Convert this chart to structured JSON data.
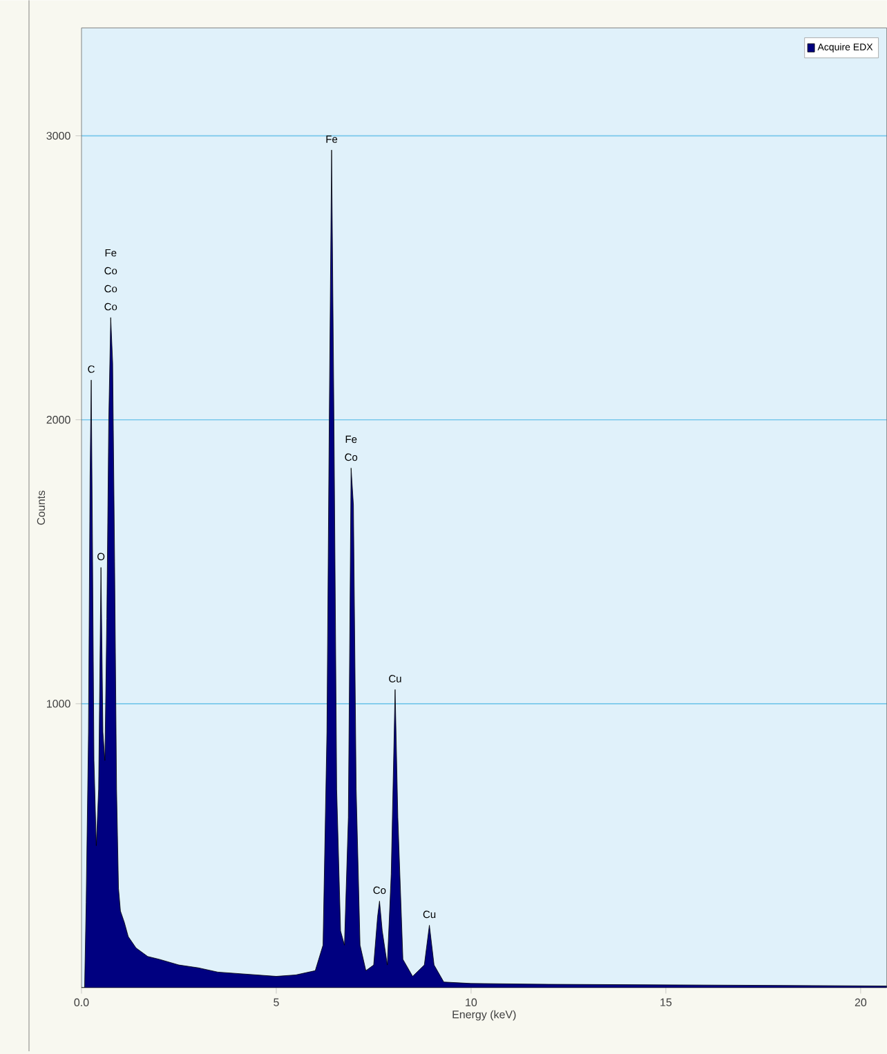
{
  "chart_data": {
    "type": "area",
    "xlabel": "Energy (keV)",
    "ylabel": "Counts",
    "xlim": [
      0,
      20.67
    ],
    "ylim": [
      0,
      3380
    ],
    "xticks": [
      {
        "value": 0,
        "label": "0.0"
      },
      5,
      10,
      15,
      20
    ],
    "yticks": [
      1000,
      2000,
      3000
    ],
    "grid": "y",
    "legend": "top right",
    "series": [
      {
        "name": "Acquire EDX",
        "color": "#000080",
        "x": [
          0,
          0.08,
          0.12,
          0.18,
          0.22,
          0.25,
          0.28,
          0.32,
          0.38,
          0.44,
          0.5,
          0.55,
          0.6,
          0.65,
          0.7,
          0.75,
          0.8,
          0.85,
          0.9,
          0.95,
          1.0,
          1.1,
          1.2,
          1.4,
          1.7,
          2.0,
          2.5,
          3.0,
          3.5,
          4.0,
          4.5,
          5.0,
          5.5,
          6.0,
          6.2,
          6.3,
          6.36,
          6.42,
          6.48,
          6.55,
          6.65,
          6.75,
          6.85,
          6.92,
          6.98,
          7.05,
          7.15,
          7.3,
          7.5,
          7.6,
          7.65,
          7.72,
          7.85,
          7.95,
          8.05,
          8.12,
          8.25,
          8.5,
          8.8,
          8.93,
          9.05,
          9.3,
          10,
          12,
          15,
          18,
          20.67
        ],
        "values": [
          0,
          0,
          300,
          900,
          1800,
          2140,
          1600,
          800,
          500,
          700,
          1480,
          900,
          800,
          1300,
          2000,
          2360,
          2200,
          1500,
          700,
          350,
          270,
          230,
          180,
          140,
          110,
          100,
          80,
          70,
          55,
          50,
          45,
          40,
          45,
          60,
          150,
          900,
          2000,
          2950,
          2000,
          700,
          200,
          150,
          600,
          1830,
          1700,
          700,
          150,
          60,
          80,
          250,
          305,
          200,
          80,
          400,
          1050,
          600,
          100,
          40,
          80,
          220,
          80,
          20,
          15,
          12,
          10,
          8,
          6
        ]
      }
    ],
    "annotations": [
      {
        "text": "Co",
        "x": 0.75,
        "y": 2360
      },
      {
        "text": "Co",
        "x": 0.75,
        "y": 2360
      },
      "Co",
      "Fe",
      {
        "text": "C",
        "x": 0.25,
        "y": 2140
      },
      {
        "text": "O",
        "x": 0.5,
        "y": 1480
      },
      {
        "text": "Fe",
        "x": 6.42,
        "y": 2950
      },
      {
        "text": "Co",
        "x": 6.92,
        "y": 1830
      },
      {
        "text": "Fe",
        "x": 6.92,
        "y": 1830
      },
      {
        "text": "Cu",
        "x": 8.05,
        "y": 1050
      },
      {
        "text": "Co",
        "x": 7.65,
        "y": 305
      },
      {
        "text": "Cu",
        "x": 8.93,
        "y": 220
      }
    ]
  }
}
